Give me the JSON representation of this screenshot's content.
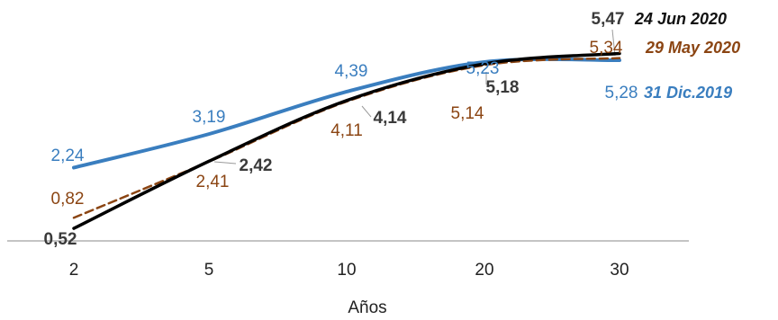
{
  "chart_data": {
    "type": "line",
    "xlabel": "Años",
    "ylabel": "",
    "categories": [
      "2",
      "5",
      "10",
      "20",
      "30"
    ],
    "ylim": [
      0,
      6
    ],
    "grid": false,
    "legend": "inline-right",
    "series": [
      {
        "name": "31 Dic.2019",
        "color": "#3a7ebf",
        "style": "solid",
        "values": [
          2.24,
          3.19,
          4.39,
          5.23,
          5.28
        ],
        "labels": [
          "2,24",
          "3,19",
          "4,39",
          "5,23",
          "5,28"
        ]
      },
      {
        "name": "29 May 2020",
        "color": "#8b4513",
        "style": "dashed",
        "values": [
          0.82,
          2.41,
          4.11,
          5.14,
          5.34
        ],
        "labels": [
          "0,82",
          "2,41",
          "4,11",
          "5,14",
          "5,34"
        ]
      },
      {
        "name": "24 Jun 2020",
        "color": "#000000",
        "style": "solid",
        "values": [
          0.52,
          2.42,
          4.14,
          5.18,
          5.47
        ],
        "labels": [
          "0,52",
          "2,42",
          "4,14",
          "5,18",
          "5,47"
        ]
      }
    ]
  }
}
